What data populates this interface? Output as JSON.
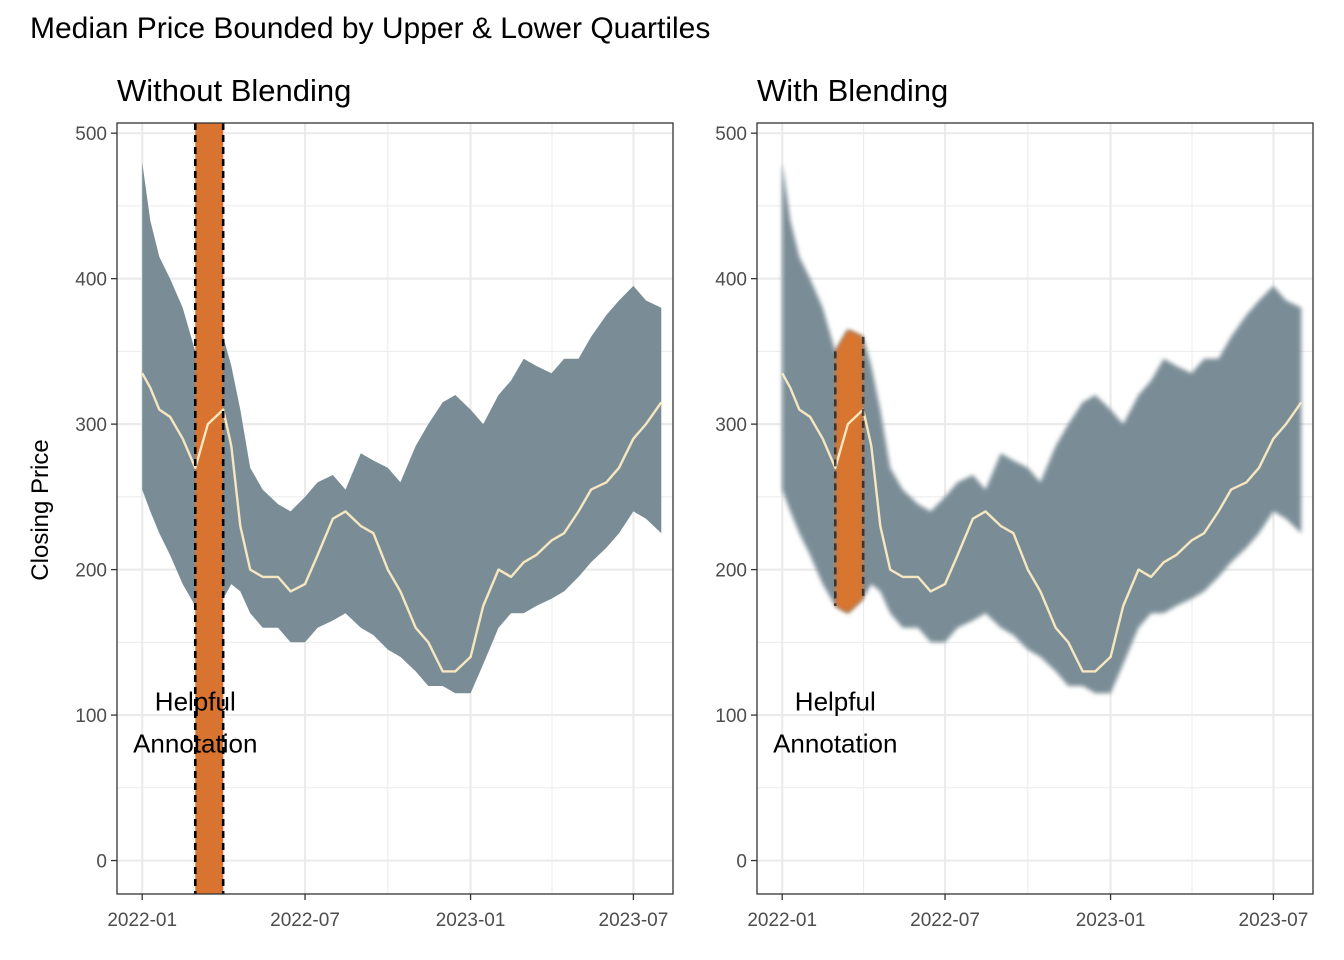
{
  "title": "Median Price Bounded by Upper & Lower Quartiles",
  "ylabel": "Closing Price",
  "annotation": [
    "Helpful",
    "Annotation"
  ],
  "colors": {
    "band": "#7a8d96",
    "median": "#f6e7c1",
    "highlight": "#d8742f",
    "grid": "#ebebeb",
    "panel_border": "#333333"
  },
  "chart_data": [
    {
      "type": "area",
      "title": "Without Blending",
      "xlabel": "",
      "ylabel": "Closing Price",
      "x_ticks": [
        "2022-01",
        "2022-07",
        "2023-01",
        "2023-07"
      ],
      "y_ticks": [
        0,
        100,
        200,
        300,
        400,
        500
      ],
      "ylim": [
        -23,
        507
      ],
      "xlim": [
        "2021-12-04",
        "2023-08-14"
      ],
      "grid": true,
      "highlight": {
        "x_start": "2022-03-01",
        "x_end": "2022-04-01",
        "style": "full-height rectangle with dashed borders"
      },
      "annotation": {
        "x": "2022-03-01",
        "y": 95,
        "text": "Helpful Annotation"
      },
      "series": [
        {
          "name": "upper quartile",
          "x": [
            "2022-01-01",
            "2022-01-10",
            "2022-01-20",
            "2022-02-01",
            "2022-02-15",
            "2022-03-01",
            "2022-03-15",
            "2022-04-01",
            "2022-04-10",
            "2022-04-20",
            "2022-05-01",
            "2022-05-15",
            "2022-06-01",
            "2022-06-15",
            "2022-07-01",
            "2022-07-15",
            "2022-08-01",
            "2022-08-15",
            "2022-09-01",
            "2022-09-15",
            "2022-10-01",
            "2022-10-15",
            "2022-11-01",
            "2022-11-15",
            "2022-12-01",
            "2022-12-15",
            "2023-01-01",
            "2023-01-15",
            "2023-02-01",
            "2023-02-15",
            "2023-03-01",
            "2023-03-15",
            "2023-04-01",
            "2023-04-15",
            "2023-05-01",
            "2023-05-15",
            "2023-06-01",
            "2023-06-15",
            "2023-07-01",
            "2023-07-15",
            "2023-08-01"
          ],
          "values": [
            480,
            440,
            415,
            400,
            380,
            350,
            365,
            360,
            340,
            310,
            270,
            255,
            245,
            240,
            250,
            260,
            265,
            255,
            280,
            275,
            270,
            260,
            285,
            300,
            315,
            320,
            310,
            300,
            320,
            330,
            345,
            340,
            335,
            345,
            345,
            360,
            375,
            385,
            395,
            385,
            380
          ]
        },
        {
          "name": "median",
          "x": [
            "2022-01-01",
            "2022-01-10",
            "2022-01-20",
            "2022-02-01",
            "2022-02-15",
            "2022-03-01",
            "2022-03-15",
            "2022-04-01",
            "2022-04-10",
            "2022-04-20",
            "2022-05-01",
            "2022-05-15",
            "2022-06-01",
            "2022-06-15",
            "2022-07-01",
            "2022-07-15",
            "2022-08-01",
            "2022-08-15",
            "2022-09-01",
            "2022-09-15",
            "2022-10-01",
            "2022-10-15",
            "2022-11-01",
            "2022-11-15",
            "2022-12-01",
            "2022-12-15",
            "2023-01-01",
            "2023-01-15",
            "2023-02-01",
            "2023-02-15",
            "2023-03-01",
            "2023-03-15",
            "2023-04-01",
            "2023-04-15",
            "2023-05-01",
            "2023-05-15",
            "2023-06-01",
            "2023-06-15",
            "2023-07-01",
            "2023-07-15",
            "2023-08-01"
          ],
          "values": [
            335,
            325,
            310,
            305,
            290,
            270,
            300,
            310,
            285,
            230,
            200,
            195,
            195,
            185,
            190,
            210,
            235,
            240,
            230,
            225,
            200,
            185,
            160,
            150,
            130,
            130,
            140,
            175,
            200,
            195,
            205,
            210,
            220,
            225,
            240,
            255,
            260,
            270,
            290,
            300,
            315
          ]
        },
        {
          "name": "lower quartile",
          "x": [
            "2022-01-01",
            "2022-01-10",
            "2022-01-20",
            "2022-02-01",
            "2022-02-15",
            "2022-03-01",
            "2022-03-15",
            "2022-04-01",
            "2022-04-10",
            "2022-04-20",
            "2022-05-01",
            "2022-05-15",
            "2022-06-01",
            "2022-06-15",
            "2022-07-01",
            "2022-07-15",
            "2022-08-01",
            "2022-08-15",
            "2022-09-01",
            "2022-09-15",
            "2022-10-01",
            "2022-10-15",
            "2022-11-01",
            "2022-11-15",
            "2022-12-01",
            "2022-12-15",
            "2023-01-01",
            "2023-01-15",
            "2023-02-01",
            "2023-02-15",
            "2023-03-01",
            "2023-03-15",
            "2023-04-01",
            "2023-04-15",
            "2023-05-01",
            "2023-05-15",
            "2023-06-01",
            "2023-06-15",
            "2023-07-01",
            "2023-07-15",
            "2023-08-01"
          ],
          "values": [
            255,
            240,
            225,
            210,
            190,
            175,
            170,
            180,
            190,
            185,
            170,
            160,
            160,
            150,
            150,
            160,
            165,
            170,
            160,
            155,
            145,
            140,
            130,
            120,
            120,
            115,
            115,
            135,
            160,
            170,
            170,
            175,
            180,
            185,
            195,
            205,
            215,
            225,
            240,
            235,
            225
          ]
        }
      ]
    },
    {
      "type": "area",
      "title": "With Blending",
      "xlabel": "",
      "ylabel": "",
      "x_ticks": [
        "2022-01",
        "2022-07",
        "2023-01",
        "2023-07"
      ],
      "y_ticks": [
        0,
        100,
        200,
        300,
        400,
        500
      ],
      "ylim": [
        -23,
        507
      ],
      "xlim": [
        "2021-12-04",
        "2023-08-14"
      ],
      "grid": true,
      "highlight": {
        "x_start": "2022-03-01",
        "x_end": "2022-04-01",
        "style": "blended into band (darken/multiply)"
      },
      "annotation": {
        "x": "2022-03-01",
        "y": 95,
        "text": "Helpful Annotation"
      },
      "series": [
        {
          "name": "upper quartile",
          "x": [
            "2022-01-01",
            "2022-01-10",
            "2022-01-20",
            "2022-02-01",
            "2022-02-15",
            "2022-03-01",
            "2022-03-15",
            "2022-04-01",
            "2022-04-10",
            "2022-04-20",
            "2022-05-01",
            "2022-05-15",
            "2022-06-01",
            "2022-06-15",
            "2022-07-01",
            "2022-07-15",
            "2022-08-01",
            "2022-08-15",
            "2022-09-01",
            "2022-09-15",
            "2022-10-01",
            "2022-10-15",
            "2022-11-01",
            "2022-11-15",
            "2022-12-01",
            "2022-12-15",
            "2023-01-01",
            "2023-01-15",
            "2023-02-01",
            "2023-02-15",
            "2023-03-01",
            "2023-03-15",
            "2023-04-01",
            "2023-04-15",
            "2023-05-01",
            "2023-05-15",
            "2023-06-01",
            "2023-06-15",
            "2023-07-01",
            "2023-07-15",
            "2023-08-01"
          ],
          "values": [
            480,
            440,
            415,
            400,
            380,
            350,
            365,
            360,
            340,
            310,
            270,
            255,
            245,
            240,
            250,
            260,
            265,
            255,
            280,
            275,
            270,
            260,
            285,
            300,
            315,
            320,
            310,
            300,
            320,
            330,
            345,
            340,
            335,
            345,
            345,
            360,
            375,
            385,
            395,
            385,
            380
          ]
        },
        {
          "name": "median",
          "x": [
            "2022-01-01",
            "2022-01-10",
            "2022-01-20",
            "2022-02-01",
            "2022-02-15",
            "2022-03-01",
            "2022-03-15",
            "2022-04-01",
            "2022-04-10",
            "2022-04-20",
            "2022-05-01",
            "2022-05-15",
            "2022-06-01",
            "2022-06-15",
            "2022-07-01",
            "2022-07-15",
            "2022-08-01",
            "2022-08-15",
            "2022-09-01",
            "2022-09-15",
            "2022-10-01",
            "2022-10-15",
            "2022-11-01",
            "2022-11-15",
            "2022-12-01",
            "2022-12-15",
            "2023-01-01",
            "2023-01-15",
            "2023-02-01",
            "2023-02-15",
            "2023-03-01",
            "2023-03-15",
            "2023-04-01",
            "2023-04-15",
            "2023-05-01",
            "2023-05-15",
            "2023-06-01",
            "2023-06-15",
            "2023-07-01",
            "2023-07-15",
            "2023-08-01"
          ],
          "values": [
            335,
            325,
            310,
            305,
            290,
            270,
            300,
            310,
            285,
            230,
            200,
            195,
            195,
            185,
            190,
            210,
            235,
            240,
            230,
            225,
            200,
            185,
            160,
            150,
            130,
            130,
            140,
            175,
            200,
            195,
            205,
            210,
            220,
            225,
            240,
            255,
            260,
            270,
            290,
            300,
            315
          ]
        },
        {
          "name": "lower quartile",
          "x": [
            "2022-01-01",
            "2022-01-10",
            "2022-01-20",
            "2022-02-01",
            "2022-02-15",
            "2022-03-01",
            "2022-03-15",
            "2022-04-01",
            "2022-04-10",
            "2022-04-20",
            "2022-05-01",
            "2022-05-15",
            "2022-06-01",
            "2022-06-15",
            "2022-07-01",
            "2022-07-15",
            "2022-08-01",
            "2022-08-15",
            "2022-09-01",
            "2022-09-15",
            "2022-10-01",
            "2022-10-15",
            "2022-11-01",
            "2022-11-15",
            "2022-12-01",
            "2022-12-15",
            "2023-01-01",
            "2023-01-15",
            "2023-02-01",
            "2023-02-15",
            "2023-03-01",
            "2023-03-15",
            "2023-04-01",
            "2023-04-15",
            "2023-05-01",
            "2023-05-15",
            "2023-06-01",
            "2023-06-15",
            "2023-07-01",
            "2023-07-15",
            "2023-08-01"
          ],
          "values": [
            255,
            240,
            225,
            210,
            190,
            175,
            170,
            180,
            190,
            185,
            170,
            160,
            160,
            150,
            150,
            160,
            165,
            170,
            160,
            155,
            145,
            140,
            130,
            120,
            120,
            115,
            115,
            135,
            160,
            170,
            170,
            175,
            180,
            185,
            195,
            205,
            215,
            225,
            240,
            235,
            225
          ]
        }
      ]
    }
  ]
}
